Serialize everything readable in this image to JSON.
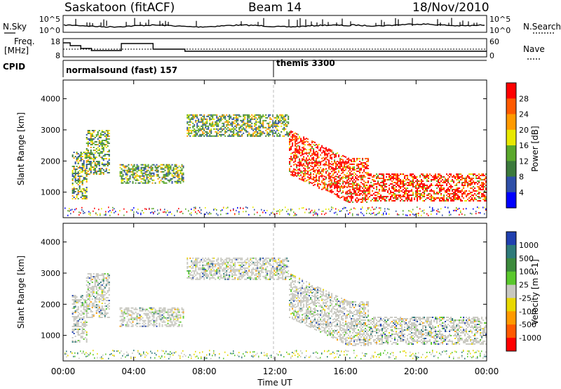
{
  "header": {
    "station": "Saskatoon (fitACF)",
    "beam": "Beam 14",
    "date": "18/Nov/2010"
  },
  "strip_labels": {
    "nsky": "N.Sky",
    "nsearch": "N.Search",
    "freq_line1": "Freq.",
    "freq_line2": "[MHz]",
    "nave": "Nave",
    "cpid": "CPID"
  },
  "nsky_ticks": [
    "10^5",
    "10^0"
  ],
  "nsearch_ticks": [
    "10^5",
    "10^0"
  ],
  "freq_ticks": [
    "18",
    "8"
  ],
  "nave_ticks": [
    "60",
    "0"
  ],
  "cpid_segments": [
    {
      "label": "normalsound (fast) 157",
      "start_hour": 0
    },
    {
      "label": "themis 3300",
      "start_hour": 12
    }
  ],
  "chart_data": [
    {
      "type": "heatmap",
      "title": "",
      "xlabel": "Time UT",
      "ylabel": "Slant Range [km]",
      "xlim": [
        0,
        24
      ],
      "ylim": [
        180,
        4600
      ],
      "x_ticks": [
        "00:00",
        "04:00",
        "08:00",
        "12:00",
        "16:00",
        "20:00",
        "00:00"
      ],
      "y_ticks": [
        1000,
        2000,
        3000,
        4000
      ],
      "colorbar": {
        "label": "Power [dB]",
        "ticks": [
          28,
          24,
          20,
          16,
          12,
          8,
          4
        ],
        "colors": [
          "#ff0000",
          "#ff5a00",
          "#ff9a00",
          "#e8e800",
          "#5aa82c",
          "#3c7a3c",
          "#2e4fa8",
          "#0000ff"
        ]
      },
      "echo_regions": [
        {
          "t_start": 0.5,
          "t_end": 1.3,
          "r_start": 800,
          "r_end": 2300,
          "level": "mixed"
        },
        {
          "t_start": 1.3,
          "t_end": 2.6,
          "r_start": 1600,
          "r_end": 3000,
          "level": "moderate"
        },
        {
          "t_start": 3.2,
          "t_end": 6.8,
          "r_start": 1300,
          "r_end": 1900,
          "level": "moderate"
        },
        {
          "t_start": 7.0,
          "t_end": 12.8,
          "r_start": 2800,
          "r_end": 3500,
          "level": "moderate"
        },
        {
          "t_start": 12.8,
          "t_end": 24.0,
          "r_start": 700,
          "r_end": 2800,
          "level": "strong"
        }
      ]
    },
    {
      "type": "heatmap",
      "title": "",
      "xlabel": "Time UT",
      "ylabel": "Slant Range [km]",
      "xlim": [
        0,
        24
      ],
      "ylim": [
        180,
        4600
      ],
      "x_ticks": [
        "00:00",
        "04:00",
        "08:00",
        "12:00",
        "16:00",
        "20:00",
        "00:00"
      ],
      "y_ticks": [
        1000,
        2000,
        3000,
        4000
      ],
      "colorbar": {
        "label": "Velocity [m s-1]",
        "ticks": [
          "1000",
          "500",
          "100",
          "25",
          "-25",
          "-100",
          "-500",
          "-1000"
        ],
        "colors": [
          "#2040b0",
          "#2e7a7a",
          "#3c8a3c",
          "#5ac82c",
          "#c8c8c0",
          "#e8d800",
          "#ff9a00",
          "#ff5a00",
          "#ff0000"
        ]
      },
      "dominant_value_band": "-25 to 25"
    }
  ],
  "colors": {
    "ground_scatter": "#c8c8c0",
    "frame": "#000000"
  }
}
